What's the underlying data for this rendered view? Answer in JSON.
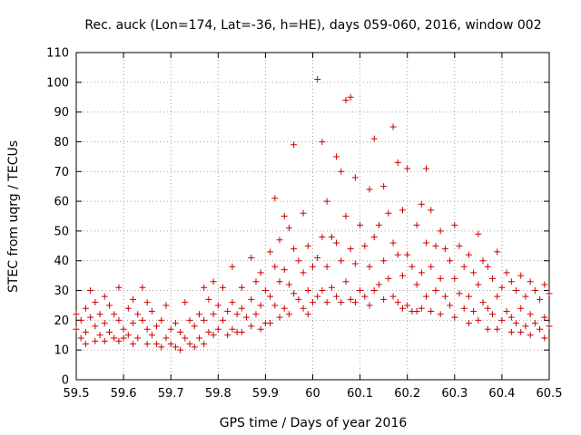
{
  "chart_data": {
    "type": "scatter",
    "title": "Rec. auck (Lon=174, Lat=-36, h=HE), days 059-060, 2016, window 002",
    "xlabel": "GPS time / Days of year 2016",
    "ylabel": "STEC from uqrg / TECUs",
    "xlim": [
      59.5,
      60.5
    ],
    "ylim": [
      0,
      110
    ],
    "xticks": [
      59.5,
      59.6,
      59.7,
      59.8,
      59.9,
      60.0,
      60.1,
      60.2,
      60.3,
      60.4,
      60.5
    ],
    "xtick_labels": [
      "59.5",
      "59.6",
      "59.7",
      "59.8",
      "59.9",
      "60",
      "60.1",
      "60.2",
      "60.3",
      "60.4",
      "60.5"
    ],
    "yticks": [
      0,
      10,
      20,
      30,
      40,
      50,
      60,
      70,
      80,
      90,
      100,
      110
    ],
    "ytick_labels": [
      "0",
      "10",
      "20",
      "30",
      "40",
      "50",
      "60",
      "70",
      "80",
      "90",
      "100",
      "110"
    ],
    "grid": true,
    "marker": "+",
    "colors": {
      "points": "#cc0000",
      "grid": "#a0a0a0",
      "axis": "#000000"
    },
    "series": [
      {
        "name": "STEC",
        "points": [
          [
            59.5,
            22
          ],
          [
            59.5,
            17
          ],
          [
            59.51,
            20
          ],
          [
            59.51,
            14
          ],
          [
            59.52,
            24
          ],
          [
            59.52,
            16
          ],
          [
            59.52,
            12
          ],
          [
            59.53,
            30
          ],
          [
            59.53,
            21
          ],
          [
            59.54,
            26
          ],
          [
            59.54,
            18
          ],
          [
            59.54,
            13
          ],
          [
            59.55,
            22
          ],
          [
            59.55,
            15
          ],
          [
            59.56,
            28
          ],
          [
            59.56,
            19
          ],
          [
            59.56,
            13
          ],
          [
            59.57,
            25
          ],
          [
            59.57,
            16
          ],
          [
            59.58,
            22
          ],
          [
            59.58,
            14
          ],
          [
            59.59,
            31
          ],
          [
            59.59,
            20
          ],
          [
            59.59,
            13
          ],
          [
            59.6,
            17
          ],
          [
            59.6,
            14
          ],
          [
            59.61,
            24
          ],
          [
            59.61,
            15
          ],
          [
            59.62,
            27
          ],
          [
            59.62,
            19
          ],
          [
            59.62,
            12
          ],
          [
            59.63,
            22
          ],
          [
            59.63,
            14
          ],
          [
            59.64,
            31
          ],
          [
            59.64,
            20
          ],
          [
            59.65,
            26
          ],
          [
            59.65,
            17
          ],
          [
            59.65,
            12
          ],
          [
            59.66,
            23
          ],
          [
            59.66,
            15
          ],
          [
            59.67,
            18
          ],
          [
            59.67,
            12
          ],
          [
            59.68,
            20
          ],
          [
            59.68,
            11
          ],
          [
            59.69,
            25
          ],
          [
            59.69,
            14
          ],
          [
            59.7,
            17
          ],
          [
            59.7,
            12
          ],
          [
            59.71,
            19
          ],
          [
            59.71,
            11
          ],
          [
            59.72,
            16
          ],
          [
            59.72,
            10
          ],
          [
            59.73,
            26
          ],
          [
            59.73,
            14
          ],
          [
            59.74,
            20
          ],
          [
            59.74,
            12
          ],
          [
            59.75,
            18
          ],
          [
            59.75,
            11
          ],
          [
            59.76,
            22
          ],
          [
            59.76,
            14
          ],
          [
            59.77,
            31
          ],
          [
            59.77,
            20
          ],
          [
            59.77,
            12
          ],
          [
            59.78,
            27
          ],
          [
            59.78,
            16
          ],
          [
            59.79,
            33
          ],
          [
            59.79,
            22
          ],
          [
            59.79,
            15
          ],
          [
            59.8,
            25
          ],
          [
            59.8,
            17
          ],
          [
            59.81,
            31
          ],
          [
            59.81,
            20
          ],
          [
            59.82,
            23
          ],
          [
            59.82,
            15
          ],
          [
            59.83,
            38
          ],
          [
            59.83,
            26
          ],
          [
            59.83,
            17
          ],
          [
            59.84,
            22
          ],
          [
            59.84,
            16
          ],
          [
            59.85,
            31
          ],
          [
            59.85,
            24
          ],
          [
            59.85,
            16
          ],
          [
            59.86,
            21
          ],
          [
            59.87,
            41
          ],
          [
            59.87,
            27
          ],
          [
            59.87,
            18
          ],
          [
            59.88,
            33
          ],
          [
            59.88,
            22
          ],
          [
            59.89,
            36
          ],
          [
            59.89,
            25
          ],
          [
            59.89,
            17
          ],
          [
            59.9,
            30
          ],
          [
            59.9,
            19
          ],
          [
            59.91,
            43
          ],
          [
            59.91,
            28
          ],
          [
            59.91,
            19
          ],
          [
            59.92,
            61
          ],
          [
            59.92,
            38
          ],
          [
            59.92,
            25
          ],
          [
            59.93,
            47
          ],
          [
            59.93,
            33
          ],
          [
            59.93,
            21
          ],
          [
            59.94,
            55
          ],
          [
            59.94,
            37
          ],
          [
            59.94,
            24
          ],
          [
            59.95,
            51
          ],
          [
            59.95,
            32
          ],
          [
            59.95,
            22
          ],
          [
            59.96,
            79
          ],
          [
            59.96,
            44
          ],
          [
            59.96,
            29
          ],
          [
            59.97,
            40
          ],
          [
            59.97,
            27
          ],
          [
            59.98,
            56
          ],
          [
            59.98,
            36
          ],
          [
            59.98,
            24
          ],
          [
            59.99,
            45
          ],
          [
            59.99,
            30
          ],
          [
            59.99,
            22
          ],
          [
            60.0,
            38
          ],
          [
            60.0,
            26
          ],
          [
            60.01,
            101
          ],
          [
            60.01,
            41
          ],
          [
            60.01,
            28
          ],
          [
            60.02,
            80
          ],
          [
            60.02,
            48
          ],
          [
            60.02,
            30
          ],
          [
            60.03,
            60
          ],
          [
            60.03,
            38
          ],
          [
            60.03,
            26
          ],
          [
            60.04,
            48
          ],
          [
            60.04,
            31
          ],
          [
            60.05,
            75
          ],
          [
            60.05,
            46
          ],
          [
            60.05,
            28
          ],
          [
            60.06,
            70
          ],
          [
            60.06,
            40
          ],
          [
            60.06,
            26
          ],
          [
            60.07,
            94
          ],
          [
            60.07,
            55
          ],
          [
            60.07,
            33
          ],
          [
            60.08,
            95
          ],
          [
            60.08,
            44
          ],
          [
            60.08,
            27
          ],
          [
            60.09,
            68
          ],
          [
            60.09,
            39
          ],
          [
            60.09,
            26
          ],
          [
            60.1,
            52
          ],
          [
            60.1,
            30
          ],
          [
            60.11,
            45
          ],
          [
            60.11,
            28
          ],
          [
            60.12,
            64
          ],
          [
            60.12,
            38
          ],
          [
            60.12,
            25
          ],
          [
            60.13,
            81
          ],
          [
            60.13,
            48
          ],
          [
            60.13,
            30
          ],
          [
            60.14,
            52
          ],
          [
            60.14,
            32
          ],
          [
            60.15,
            65
          ],
          [
            60.15,
            40
          ],
          [
            60.15,
            27
          ],
          [
            60.16,
            56
          ],
          [
            60.16,
            34
          ],
          [
            60.17,
            85
          ],
          [
            60.17,
            46
          ],
          [
            60.17,
            28
          ],
          [
            60.18,
            73
          ],
          [
            60.18,
            42
          ],
          [
            60.18,
            26
          ],
          [
            60.19,
            57
          ],
          [
            60.19,
            35
          ],
          [
            60.19,
            24
          ],
          [
            60.2,
            71
          ],
          [
            60.2,
            42
          ],
          [
            60.2,
            25
          ],
          [
            60.21,
            38
          ],
          [
            60.21,
            23
          ],
          [
            60.22,
            52
          ],
          [
            60.22,
            32
          ],
          [
            60.22,
            23
          ],
          [
            60.23,
            59
          ],
          [
            60.23,
            36
          ],
          [
            60.23,
            24
          ],
          [
            60.24,
            71
          ],
          [
            60.24,
            46
          ],
          [
            60.24,
            28
          ],
          [
            60.25,
            57
          ],
          [
            60.25,
            38
          ],
          [
            60.25,
            23
          ],
          [
            60.26,
            45
          ],
          [
            60.26,
            30
          ],
          [
            60.27,
            50
          ],
          [
            60.27,
            34
          ],
          [
            60.27,
            22
          ],
          [
            60.28,
            44
          ],
          [
            60.28,
            28
          ],
          [
            60.29,
            40
          ],
          [
            60.29,
            25
          ],
          [
            60.3,
            52
          ],
          [
            60.3,
            34
          ],
          [
            60.3,
            21
          ],
          [
            60.31,
            45
          ],
          [
            60.31,
            29
          ],
          [
            60.32,
            38
          ],
          [
            60.32,
            24
          ],
          [
            60.33,
            42
          ],
          [
            60.33,
            28
          ],
          [
            60.33,
            19
          ],
          [
            60.34,
            36
          ],
          [
            60.34,
            23
          ],
          [
            60.35,
            49
          ],
          [
            60.35,
            32
          ],
          [
            60.35,
            20
          ],
          [
            60.36,
            40
          ],
          [
            60.36,
            26
          ],
          [
            60.37,
            38
          ],
          [
            60.37,
            24
          ],
          [
            60.37,
            17
          ],
          [
            60.38,
            34
          ],
          [
            60.38,
            22
          ],
          [
            60.39,
            43
          ],
          [
            60.39,
            28
          ],
          [
            60.39,
            17
          ],
          [
            60.4,
            31
          ],
          [
            60.4,
            20
          ],
          [
            60.41,
            36
          ],
          [
            60.41,
            23
          ],
          [
            60.42,
            33
          ],
          [
            60.42,
            21
          ],
          [
            60.42,
            16
          ],
          [
            60.43,
            30
          ],
          [
            60.43,
            19
          ],
          [
            60.44,
            35
          ],
          [
            60.44,
            24
          ],
          [
            60.44,
            16
          ],
          [
            60.45,
            28
          ],
          [
            60.45,
            18
          ],
          [
            60.46,
            33
          ],
          [
            60.46,
            22
          ],
          [
            60.46,
            15
          ],
          [
            60.47,
            30
          ],
          [
            60.47,
            19
          ],
          [
            60.48,
            27
          ],
          [
            60.48,
            17
          ],
          [
            60.49,
            32
          ],
          [
            60.49,
            21
          ],
          [
            60.49,
            14
          ],
          [
            60.5,
            29
          ],
          [
            60.5,
            18
          ]
        ]
      }
    ]
  }
}
